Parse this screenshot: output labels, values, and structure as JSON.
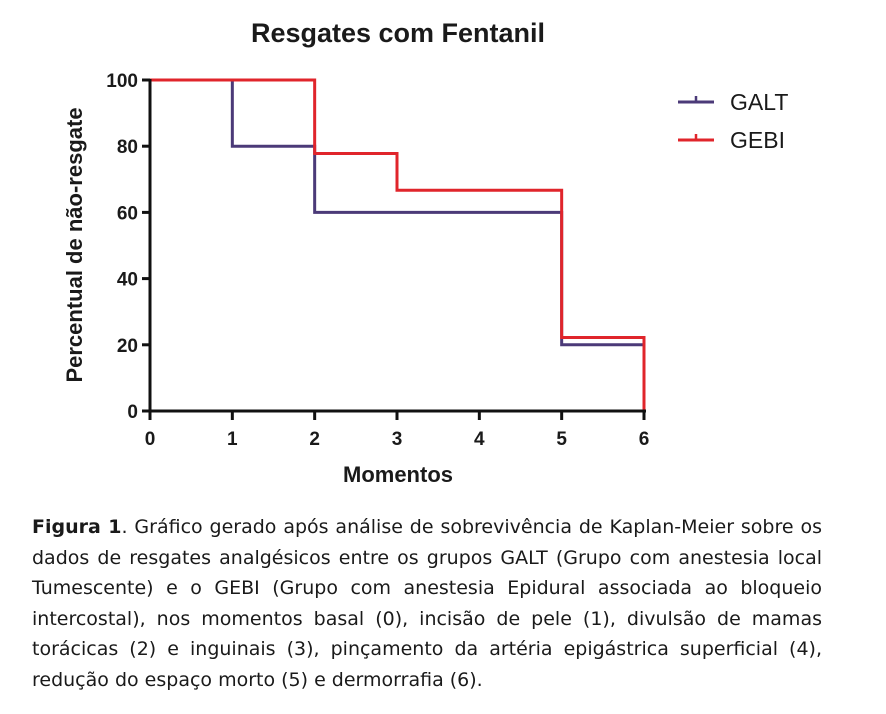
{
  "chart_data": {
    "type": "line",
    "step": true,
    "title": "Resgates com Fentanil",
    "xlabel": "Momentos",
    "ylabel": "Percentual de não-resgate",
    "xlim": [
      0,
      6
    ],
    "ylim": [
      0,
      100
    ],
    "xticks": [
      "0",
      "1",
      "2",
      "3",
      "4",
      "5",
      "6"
    ],
    "yticks": [
      "0",
      "20",
      "40",
      "60",
      "80",
      "100"
    ],
    "legend_position": "top-right",
    "series": [
      {
        "name": "GALT",
        "color": "#4b3a78",
        "x": [
          0,
          1,
          2,
          5,
          6
        ],
        "y": [
          100,
          80,
          60,
          20,
          0
        ]
      },
      {
        "name": "GEBI",
        "color": "#e0252b",
        "x": [
          0,
          2,
          3,
          5,
          6
        ],
        "y": [
          100,
          77.8,
          66.7,
          22.2,
          0
        ]
      }
    ]
  },
  "caption": {
    "label": "Figura 1",
    "text": ". Gráfico gerado após análise de sobrevivência de Kaplan-Meier sobre os dados de resgates analgésicos entre os grupos GALT (Grupo com anestesia local Tumescente) e o GEBI (Grupo com anestesia Epidural associada ao bloqueio intercostal), nos momentos basal (0), incisão de pele (1), divulsão de mamas torácicas (2) e inguinais (3), pinçamento da artéria epigástrica superficial (4), redução do espaço morto (5) e dermorrafia (6)."
  }
}
